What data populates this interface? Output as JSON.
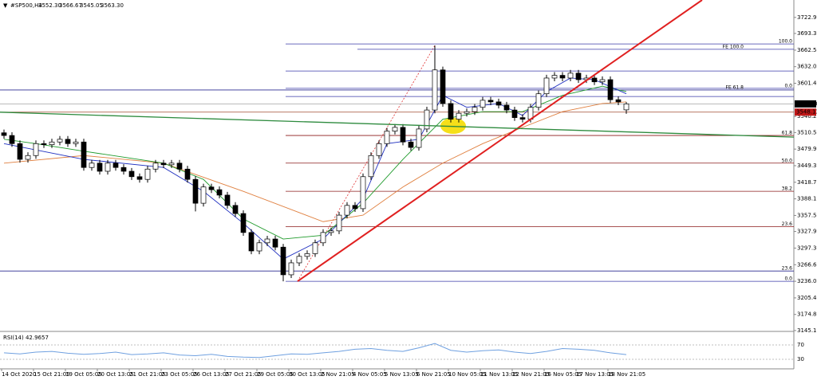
{
  "chart_data": {
    "type": "candlestick",
    "header": {
      "symbol": "#SP500,H4",
      "ohlc": [
        "3552.30",
        "3566.67",
        "3545.05",
        "3563.30"
      ]
    },
    "open": [
      3510,
      3505,
      3490,
      3461,
      3468,
      3490,
      3488,
      3493,
      3498,
      3490,
      3493,
      3446,
      3454,
      3439,
      3454,
      3446,
      3439,
      3429,
      3424,
      3443,
      3454,
      3451,
      3454,
      3443,
      3424,
      3380,
      3410,
      3405,
      3395,
      3376,
      3361,
      3326,
      3292,
      3307,
      3314,
      3299,
      3248,
      3270,
      3282,
      3287,
      3307,
      3326,
      3329,
      3358,
      3376,
      3370,
      3429,
      3468,
      3490,
      3513,
      3520,
      3493,
      3483,
      3517,
      3552,
      3626,
      3564,
      3535,
      3546,
      3549,
      3557,
      3570,
      3567,
      3561,
      3552,
      3538,
      3535,
      3557,
      3582,
      3611,
      3616,
      3611,
      3620,
      3608,
      3611,
      3604,
      3608,
      3571,
      3552.3
    ],
    "high": [
      3516,
      3511,
      3496,
      3474,
      3496,
      3496,
      3499,
      3504,
      3504,
      3499,
      3499,
      3460,
      3460,
      3460,
      3460,
      3452,
      3445,
      3435,
      3449,
      3460,
      3460,
      3460,
      3460,
      3449,
      3430,
      3416,
      3416,
      3411,
      3401,
      3382,
      3367,
      3332,
      3313,
      3320,
      3320,
      3305,
      3276,
      3288,
      3293,
      3313,
      3332,
      3335,
      3364,
      3382,
      3382,
      3435,
      3474,
      3496,
      3519,
      3526,
      3526,
      3499,
      3523,
      3558,
      3671,
      3632,
      3570,
      3552,
      3555,
      3563,
      3576,
      3576,
      3573,
      3567,
      3558,
      3544,
      3563,
      3588,
      3617,
      3622,
      3622,
      3626,
      3626,
      3617,
      3617,
      3614,
      3614,
      3577,
      3566.67
    ],
    "low": [
      3499,
      3484,
      3455,
      3455,
      3462,
      3482,
      3482,
      3487,
      3484,
      3484,
      3440,
      3440,
      3433,
      3433,
      3440,
      3433,
      3423,
      3418,
      3418,
      3437,
      3445,
      3445,
      3437,
      3418,
      3365,
      3374,
      3399,
      3389,
      3370,
      3355,
      3320,
      3286,
      3286,
      3301,
      3293,
      3236,
      3242,
      3264,
      3276,
      3281,
      3301,
      3320,
      3323,
      3352,
      3364,
      3364,
      3423,
      3462,
      3484,
      3507,
      3487,
      3477,
      3477,
      3511,
      3546,
      3558,
      3529,
      3529,
      3540,
      3543,
      3551,
      3561,
      3555,
      3546,
      3532,
      3529,
      3529,
      3551,
      3576,
      3605,
      3605,
      3605,
      3602,
      3602,
      3598,
      3598,
      3565,
      3561,
      3545.05
    ],
    "close": [
      3505,
      3490,
      3461,
      3468,
      3490,
      3488,
      3493,
      3498,
      3490,
      3493,
      3446,
      3454,
      3439,
      3454,
      3446,
      3439,
      3429,
      3424,
      3443,
      3454,
      3451,
      3454,
      3443,
      3424,
      3380,
      3410,
      3405,
      3395,
      3376,
      3361,
      3326,
      3292,
      3307,
      3314,
      3299,
      3248,
      3270,
      3282,
      3287,
      3307,
      3326,
      3329,
      3358,
      3376,
      3370,
      3429,
      3468,
      3490,
      3513,
      3520,
      3493,
      3483,
      3517,
      3552,
      3626,
      3564,
      3535,
      3546,
      3549,
      3557,
      3570,
      3567,
      3561,
      3552,
      3538,
      3535,
      3557,
      3582,
      3611,
      3616,
      3611,
      3620,
      3608,
      3611,
      3604,
      3608,
      3571,
      3567,
      3563.3
    ],
    "xlim": [
      0,
      99
    ],
    "xticks": [
      {
        "value": 0,
        "label": "14 Oct 2020"
      },
      {
        "value": 4,
        "label": "15 Oct 21:05"
      },
      {
        "value": 8,
        "label": "19 Oct 05:05"
      },
      {
        "value": 12,
        "label": "20 Oct 13:05"
      },
      {
        "value": 16,
        "label": "21 Oct 21:05"
      },
      {
        "value": 20,
        "label": "23 Oct 05:05"
      },
      {
        "value": 24,
        "label": "26 Oct 13:05"
      },
      {
        "value": 28,
        "label": "27 Oct 21:05"
      },
      {
        "value": 32,
        "label": "29 Oct 05:05"
      },
      {
        "value": 36,
        "label": "30 Oct 13:05"
      },
      {
        "value": 40,
        "label": "2 Nov 21:05"
      },
      {
        "value": 44,
        "label": "4 Nov 05:05"
      },
      {
        "value": 48,
        "label": "5 Nov 13:05"
      },
      {
        "value": 52,
        "label": "6 Nov 21:05"
      },
      {
        "value": 56,
        "label": "10 Nov 05:05"
      },
      {
        "value": 60,
        "label": "11 Nov 13:05"
      },
      {
        "value": 64,
        "label": "12 Nov 21:05"
      },
      {
        "value": 68,
        "label": "16 Nov 05:05"
      },
      {
        "value": 72,
        "label": "17 Nov 13:05"
      },
      {
        "value": 76,
        "label": "18 Nov 21:05"
      }
    ],
    "ylim": [
      3145,
      3755
    ],
    "yticks": [
      {
        "value": 3722.9,
        "label": "3722.90"
      },
      {
        "value": 3693.3,
        "label": "3693.30"
      },
      {
        "value": 3662.5,
        "label": "3662.50"
      },
      {
        "value": 3632,
        "label": "3632.00"
      },
      {
        "value": 3601.4,
        "label": "3601.40"
      },
      {
        "value": 3540.2,
        "label": "3540.20"
      },
      {
        "value": 3510.5,
        "label": "3510.50"
      },
      {
        "value": 3479.9,
        "label": "3479.90"
      },
      {
        "value": 3449.3,
        "label": "3449.30"
      },
      {
        "value": 3418.7,
        "label": "3418.70"
      },
      {
        "value": 3388.1,
        "label": "3388.10"
      },
      {
        "value": 3357.5,
        "label": "3357.50"
      },
      {
        "value": 3327.9,
        "label": "3327.90"
      },
      {
        "value": 3297.3,
        "label": "3297.30"
      },
      {
        "value": 3266.6,
        "label": "3266.60"
      },
      {
        "value": 3236,
        "label": "3236.00"
      },
      {
        "value": 3205.4,
        "label": "3205.40"
      },
      {
        "value": 3174.8,
        "label": "3174.80"
      },
      {
        "value": 3145.1,
        "label": "3145.10"
      }
    ],
    "moving_averages": [
      {
        "color": "#e08040",
        "x": [
          0,
          10,
          20,
          30,
          40,
          45,
          50,
          55,
          60,
          65,
          70,
          75,
          78
        ],
        "values": [
          3454,
          3468,
          3454,
          3402,
          3346,
          3358,
          3410,
          3454,
          3490,
          3520,
          3549,
          3564,
          3567
        ]
      },
      {
        "color": "#1e9a2a",
        "x": [
          0,
          4,
          10,
          20,
          25,
          30,
          35,
          40,
          45,
          50,
          55,
          60,
          65,
          70,
          75,
          78
        ],
        "values": [
          3498,
          3490,
          3476,
          3454,
          3424,
          3351,
          3314,
          3321,
          3380,
          3461,
          3535,
          3549,
          3549,
          3579,
          3596,
          3586
        ]
      },
      {
        "color": "#2030c0",
        "x": [
          0,
          10,
          20,
          25,
          30,
          35,
          40,
          45,
          48,
          52,
          55,
          58,
          62,
          65,
          68,
          71,
          74,
          78
        ],
        "values": [
          3490,
          3461,
          3446,
          3402,
          3343,
          3277,
          3314,
          3388,
          3490,
          3498,
          3579,
          3557,
          3564,
          3542,
          3586,
          3611,
          3608,
          3582
        ]
      }
    ],
    "fib_levels": [
      {
        "value": 3674,
        "label": "100.0",
        "color": "#3a3aa8",
        "from": 35.3
      },
      {
        "value": 3592,
        "label": "0.0",
        "color": "#3a3aa8",
        "from": 35.3
      },
      {
        "value": 3505,
        "label": "61.8",
        "color": "#8b1a1a",
        "from": 35.3
      },
      {
        "value": 3454,
        "label": "50.0",
        "color": "#8b1a1a",
        "from": 35.3
      },
      {
        "value": 3402,
        "label": "38.2",
        "color": "#8b1a1a",
        "from": 35.3
      },
      {
        "value": 3337,
        "label": "23.6",
        "color": "#8b1a1a",
        "from": 35.3
      },
      {
        "value": 3255,
        "label": "23.6",
        "color": "#2b2b90",
        "from": -1
      },
      {
        "value": 3236,
        "label": "0.0",
        "color": "#3a3aa8",
        "from": 35.3
      }
    ],
    "fe_levels": [
      {
        "value": 3664,
        "label": "FE 100.0",
        "color": "#3a3aa8",
        "from": 44.3
      },
      {
        "value": 3589,
        "label": "FE 61.8",
        "color": "#2b2b90",
        "from": -1
      }
    ],
    "fib_lines": [
      {
        "value": 3624,
        "color": "#3a3aa8",
        "from": 35.3
      },
      {
        "value": 3577,
        "color": "#3a3aa8",
        "from": 35.3
      }
    ],
    "trendlines": [
      {
        "color": "#e02020",
        "x": [
          36.8,
          87.5
        ],
        "values": [
          3236,
          3755
        ]
      },
      {
        "color": "#2e8b3e",
        "x": [
          -0.5,
          99
        ],
        "values": [
          3548,
          3502
        ]
      }
    ],
    "price_tags": [
      {
        "value": 3563.3,
        "label": "3563.30",
        "color": "#000000",
        "line": "#b0b0b0"
      },
      {
        "value": 3548.13,
        "label": "3548.13",
        "color": "#c01818",
        "line": "#a04a30"
      }
    ],
    "rsi": {
      "label": "RSI(14) 42.9657",
      "ylim": [
        0,
        100
      ],
      "yticks": [
        70,
        30
      ],
      "color": "#6fa0e0",
      "x": [
        0,
        2,
        4,
        6,
        8,
        10,
        12,
        14,
        16,
        18,
        20,
        22,
        24,
        26,
        28,
        30,
        32,
        34,
        36,
        38,
        40,
        42,
        44,
        46,
        48,
        50,
        52,
        54,
        56,
        58,
        60,
        62,
        64,
        66,
        68,
        70,
        72,
        74,
        76,
        78
      ],
      "values": [
        48,
        45,
        50,
        52,
        47,
        44,
        46,
        50,
        43,
        45,
        48,
        42,
        40,
        44,
        38,
        36,
        35,
        40,
        45,
        44,
        48,
        52,
        58,
        60,
        55,
        52,
        62,
        74,
        55,
        50,
        54,
        56,
        50,
        46,
        52,
        60,
        58,
        55,
        48,
        42.97
      ]
    }
  }
}
